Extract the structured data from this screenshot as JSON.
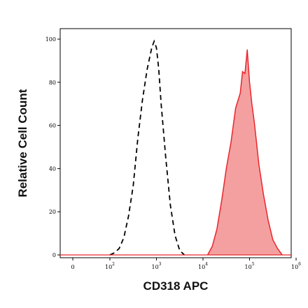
{
  "chart_data": {
    "type": "area",
    "xlabel": "CD318 APC",
    "ylabel": "Relative Cell Count",
    "x_scale": "biexponential",
    "x_ticks": [
      {
        "value": 0,
        "label": "0"
      },
      {
        "value": 100,
        "label": "10",
        "exp": "2"
      },
      {
        "value": 1000,
        "label": "10",
        "exp": "3"
      },
      {
        "value": 10000,
        "label": "10",
        "exp": "4"
      },
      {
        "value": 100000,
        "label": "10",
        "exp": "5"
      },
      {
        "value": 1000000,
        "label": "10",
        "exp": "6"
      }
    ],
    "y_ticks": [
      0,
      20,
      40,
      60,
      80,
      100
    ],
    "ylim": [
      0,
      100
    ],
    "series": [
      {
        "style": "dashed",
        "color": "#000000",
        "x_log10": [
          2.0,
          2.1,
          2.2,
          2.3,
          2.4,
          2.5,
          2.6,
          2.7,
          2.8,
          2.9,
          2.95,
          3.0,
          3.05,
          3.1,
          3.2,
          3.3,
          3.4,
          3.5,
          3.6
        ],
        "values": [
          0,
          1,
          3,
          8,
          18,
          32,
          54,
          72,
          86,
          96,
          99,
          96,
          86,
          70,
          45,
          23,
          9,
          2,
          0
        ]
      },
      {
        "style": "filled",
        "color": "#e8262b",
        "fill": "#f4a0a0",
        "x_log10": [
          4.1,
          4.2,
          4.3,
          4.4,
          4.5,
          4.6,
          4.7,
          4.8,
          4.85,
          4.9,
          4.95,
          5.0,
          5.05,
          5.1,
          5.15,
          5.2,
          5.3,
          5.4,
          5.5,
          5.6,
          5.7
        ],
        "values": [
          0,
          4,
          12,
          25,
          40,
          52,
          68,
          75,
          85,
          84,
          95,
          80,
          70,
          62,
          52,
          42,
          28,
          16,
          7,
          3,
          0
        ]
      }
    ]
  }
}
